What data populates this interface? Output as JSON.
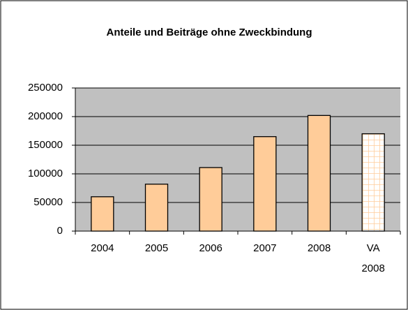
{
  "chart_data": {
    "type": "bar",
    "title": "Anteile und Beiträge ohne Zweckbindung",
    "categories": [
      "2004",
      "2005",
      "2006",
      "2007",
      "2008",
      "VA 2008"
    ],
    "values": [
      60000,
      82000,
      111000,
      165000,
      202000,
      170000
    ],
    "fill_styles": [
      "solid",
      "solid",
      "solid",
      "solid",
      "solid",
      "grid"
    ],
    "color": "#ffcc99",
    "plot_background": "#c0c0c0",
    "ylim": [
      0,
      250000
    ],
    "yticks": [
      0,
      50000,
      100000,
      150000,
      200000,
      250000
    ],
    "grid": true
  }
}
